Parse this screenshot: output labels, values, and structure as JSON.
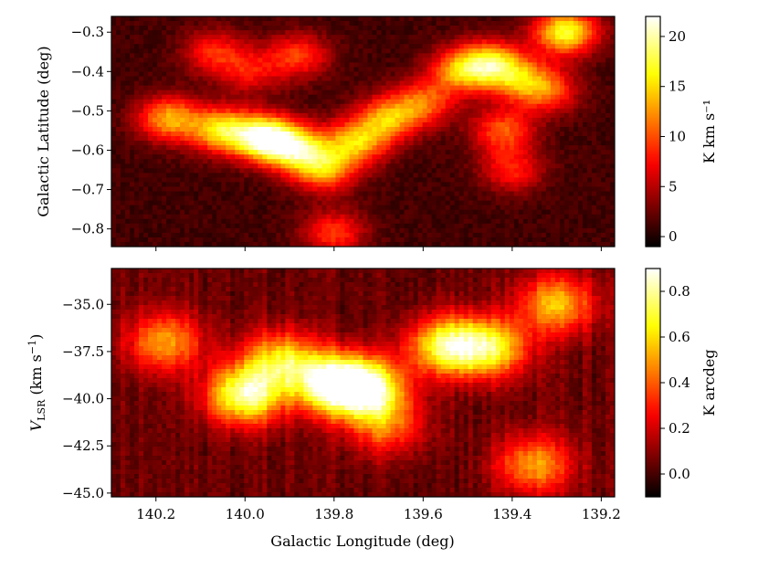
{
  "chart_data": [
    {
      "type": "heatmap",
      "title": "",
      "xlabel": "",
      "ylabel": "Galactic Latitude (deg)",
      "xlim": [
        140.3,
        139.17
      ],
      "ylim": [
        -0.845,
        -0.26
      ],
      "xticks": [
        140.2,
        140.0,
        139.8,
        139.6,
        139.4,
        139.2
      ],
      "yticks": [
        -0.8,
        -0.7,
        -0.6,
        -0.5,
        -0.4,
        -0.3
      ],
      "ytick_labels": [
        "−0.8",
        "−0.7",
        "−0.6",
        "−0.5",
        "−0.4",
        "−0.3"
      ],
      "colormap": "hot",
      "colorbar": {
        "label": "K km s⁻¹",
        "range": [
          -1,
          22
        ],
        "ticks": [
          0,
          5,
          10,
          15,
          20
        ],
        "tick_labels": [
          "0",
          "5",
          "10",
          "15",
          "20"
        ]
      },
      "features": [
        {
          "l": 139.95,
          "b": -0.57,
          "value": 20
        },
        {
          "l": 140.17,
          "b": -0.52,
          "value": 12
        },
        {
          "l": 140.05,
          "b": -0.55,
          "value": 14
        },
        {
          "l": 139.88,
          "b": -0.6,
          "value": 13
        },
        {
          "l": 139.82,
          "b": -0.65,
          "value": 11
        },
        {
          "l": 139.75,
          "b": -0.58,
          "value": 12
        },
        {
          "l": 139.68,
          "b": -0.52,
          "value": 11
        },
        {
          "l": 139.6,
          "b": -0.48,
          "value": 9
        },
        {
          "l": 139.52,
          "b": -0.4,
          "value": 10
        },
        {
          "l": 139.45,
          "b": -0.38,
          "value": 14
        },
        {
          "l": 139.38,
          "b": -0.42,
          "value": 9
        },
        {
          "l": 139.28,
          "b": -0.3,
          "value": 16
        },
        {
          "l": 139.32,
          "b": -0.45,
          "value": 8
        },
        {
          "l": 139.42,
          "b": -0.55,
          "value": 9
        },
        {
          "l": 139.4,
          "b": -0.65,
          "value": 7
        },
        {
          "l": 139.8,
          "b": -0.81,
          "value": 8
        },
        {
          "l": 140.07,
          "b": -0.35,
          "value": 7
        },
        {
          "l": 139.99,
          "b": -0.4,
          "value": 6
        },
        {
          "l": 139.88,
          "b": -0.36,
          "value": 8
        }
      ]
    },
    {
      "type": "heatmap",
      "title": "",
      "xlabel": "Galactic Longitude (deg)",
      "ylabel": "V_LSR (km s⁻¹)",
      "ylabel_main": "V",
      "ylabel_sub": "LSR",
      "ylabel_rest": " (km s",
      "ylabel_sup": "−1",
      "ylabel_close": ")",
      "xlim": [
        140.3,
        139.17
      ],
      "ylim": [
        -45.2,
        -33.1
      ],
      "xticks": [
        140.2,
        140.0,
        139.8,
        139.6,
        139.4,
        139.2
      ],
      "xtick_labels": [
        "140.2",
        "140.0",
        "139.8",
        "139.6",
        "139.4",
        "139.2"
      ],
      "yticks": [
        -45.0,
        -42.5,
        -40.0,
        -37.5,
        -35.0
      ],
      "ytick_labels": [
        "−45.0",
        "−42.5",
        "−40.0",
        "−37.5",
        "−35.0"
      ],
      "colormap": "hot",
      "colorbar": {
        "label": "K arcdeg",
        "range": [
          -0.1,
          0.9
        ],
        "ticks": [
          0.0,
          0.2,
          0.4,
          0.6,
          0.8
        ],
        "tick_labels": [
          "0.0",
          "0.2",
          "0.4",
          "0.6",
          "0.8"
        ]
      },
      "features": [
        {
          "l": 140.0,
          "v": -39.8,
          "value": 0.75
        },
        {
          "l": 139.8,
          "v": -39.2,
          "value": 0.85
        },
        {
          "l": 139.72,
          "v": -39.5,
          "value": 0.7
        },
        {
          "l": 140.18,
          "v": -37.0,
          "value": 0.45
        },
        {
          "l": 139.92,
          "v": -38.0,
          "value": 0.55
        },
        {
          "l": 139.55,
          "v": -37.2,
          "value": 0.65
        },
        {
          "l": 139.45,
          "v": -37.3,
          "value": 0.6
        },
        {
          "l": 139.3,
          "v": -35.0,
          "value": 0.5
        },
        {
          "l": 139.35,
          "v": -43.5,
          "value": 0.45
        },
        {
          "l": 139.68,
          "v": -41.5,
          "value": 0.35
        }
      ]
    }
  ]
}
